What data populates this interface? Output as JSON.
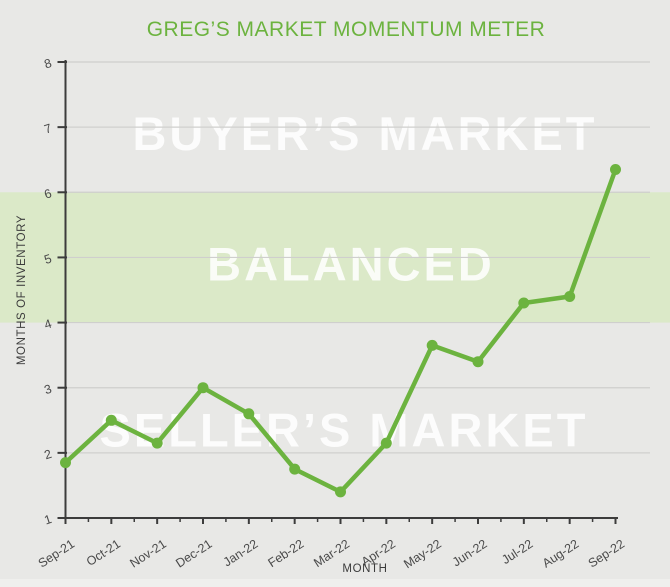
{
  "colors": {
    "background": "#e8e8e6",
    "band": "#dbe9c8",
    "line": "#6cb33f",
    "title": "#6cb33f",
    "axis": "#3c3c3c",
    "tick_label": "#4a4a4a",
    "gridline": "#cfcfcd",
    "zone_text": "rgba(255,255,255,0.85)",
    "footer_strip": "#efefed"
  },
  "chart_data": {
    "type": "line",
    "title": "GREG’S MARKET MOMENTUM METER",
    "xlabel": "MONTH",
    "ylabel": "MONTHS OF INVENTORY",
    "categories": [
      "Sep-21",
      "Oct-21",
      "Nov-21",
      "Dec-21",
      "Jan-22",
      "Feb-22",
      "Mar-22",
      "Apr-22",
      "May-22",
      "Jun-22",
      "Jul-22",
      "Aug-22",
      "Sep-22"
    ],
    "series": [
      {
        "name": "Months of Inventory",
        "values": [
          1.85,
          2.5,
          2.15,
          3.0,
          2.6,
          1.75,
          1.4,
          2.15,
          3.65,
          3.4,
          4.3,
          4.4,
          6.35
        ]
      }
    ],
    "ylim": [
      1,
      8
    ],
    "yticks": [
      1,
      2,
      3,
      4,
      5,
      6,
      7,
      8
    ],
    "grid": true,
    "legend": false,
    "zones": [
      {
        "label": "BUYER’S MARKET",
        "label_value": 6.9
      },
      {
        "label": "BALANCED",
        "label_value": 4.9,
        "band": [
          4,
          6
        ]
      },
      {
        "label": "SELLER’S MARKET",
        "label_value": 2.35
      }
    ]
  }
}
